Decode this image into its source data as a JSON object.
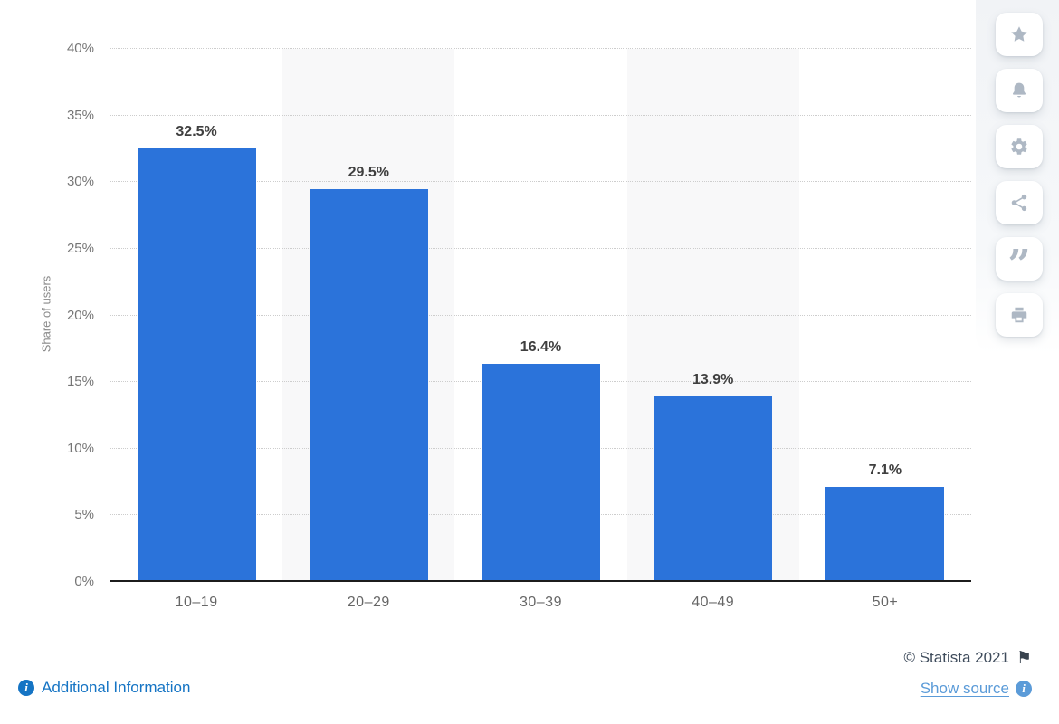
{
  "chart_data": {
    "type": "bar",
    "title": "",
    "ylabel": "Share of users",
    "categories": [
      "10–19",
      "20–29",
      "30–39",
      "40–49",
      "50+"
    ],
    "values": [
      32.5,
      29.5,
      16.4,
      13.9,
      7.1
    ],
    "value_labels": [
      "32.5%",
      "29.5%",
      "16.4%",
      "13.9%",
      "7.1%"
    ],
    "ylim": [
      0,
      40
    ],
    "ytick_step": 5,
    "ytick_labels": [
      "0%",
      "5%",
      "10%",
      "15%",
      "20%",
      "25%",
      "30%",
      "35%",
      "40%"
    ],
    "grid": "horizontal-dotted",
    "legend": "none",
    "bar_color": "#2B73DA",
    "stripe_color": "#F8F8F9",
    "striped_columns": [
      1,
      3
    ]
  },
  "toolbar": {
    "items": [
      {
        "icon": "star-icon",
        "label": "favorite"
      },
      {
        "icon": "bell-icon",
        "label": "alerts"
      },
      {
        "icon": "gear-icon",
        "label": "settings"
      },
      {
        "icon": "share-icon",
        "label": "share"
      },
      {
        "icon": "quote-icon",
        "label": "cite"
      },
      {
        "icon": "print-icon",
        "label": "print"
      }
    ]
  },
  "footer": {
    "additional_info_label": "Additional Information",
    "copyright_text": "© Statista 2021",
    "flag_icon": "⚑",
    "show_source_label": "Show source",
    "info_glyph": "i"
  },
  "colors": {
    "bar": "#2B73DA",
    "value_label": "#3F3F3F",
    "axis_label": "#757575",
    "link_primary": "#1574C4",
    "link_source": "#5B9BD8",
    "copyright": "#3F4C5C",
    "toolbar_icon": "#AEB8C4"
  }
}
